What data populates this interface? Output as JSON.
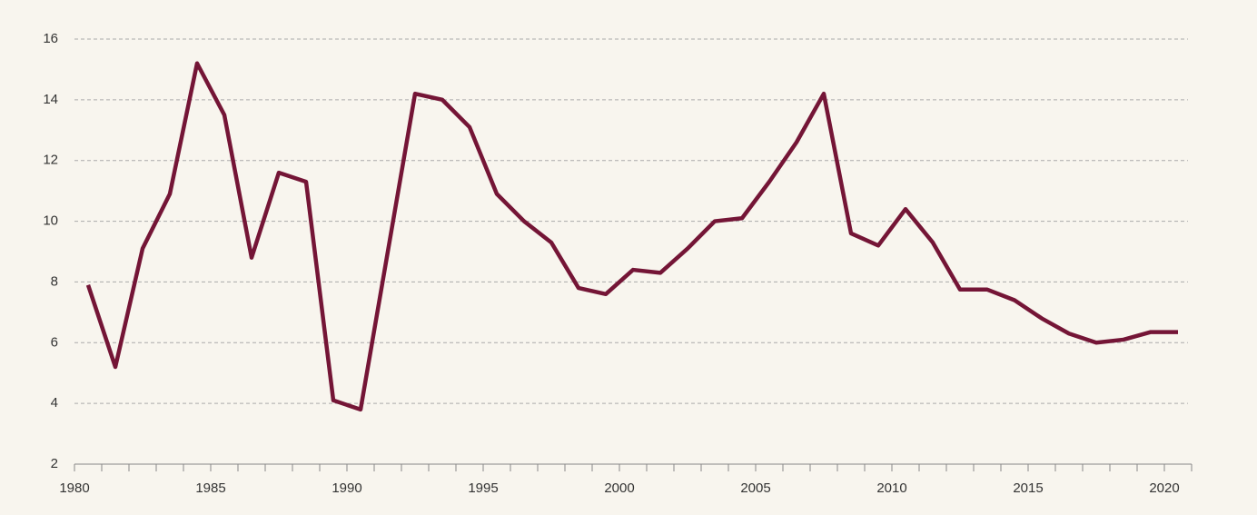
{
  "chart_data": {
    "type": "line",
    "x": [
      1980,
      1981,
      1982,
      1983,
      1984,
      1985,
      1986,
      1987,
      1988,
      1989,
      1990,
      1991,
      1992,
      1993,
      1994,
      1995,
      1996,
      1997,
      1998,
      1999,
      2000,
      2001,
      2002,
      2003,
      2004,
      2005,
      2006,
      2007,
      2008,
      2009,
      2010,
      2011,
      2012,
      2013,
      2014,
      2015,
      2016,
      2017,
      2018,
      2019,
      2020
    ],
    "series": [
      {
        "color": "#741536",
        "values": [
          7.9,
          5.2,
          9.1,
          10.9,
          15.2,
          13.5,
          8.8,
          11.6,
          11.3,
          4.1,
          3.8,
          9.0,
          14.2,
          14.0,
          13.1,
          10.9,
          10.0,
          9.3,
          7.8,
          7.6,
          8.4,
          8.3,
          9.1,
          10.0,
          10.1,
          11.3,
          12.6,
          14.2,
          9.6,
          9.2,
          10.4,
          9.3,
          7.75,
          7.75,
          7.4,
          6.8,
          6.3,
          6.0,
          6.1,
          6.35,
          6.35
        ]
      }
    ],
    "xlim": [
      1980,
      2021
    ],
    "xticks": [
      1980,
      1985,
      1990,
      1995,
      2000,
      2005,
      2010,
      2015,
      2020
    ],
    "ylim": [
      2,
      16
    ],
    "yticks": [
      2,
      4,
      6,
      8,
      10,
      12,
      14,
      16
    ],
    "grid": true
  }
}
